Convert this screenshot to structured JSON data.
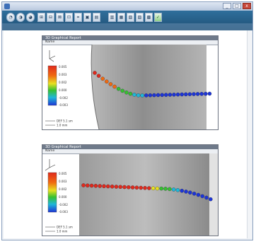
{
  "window": {
    "title": "",
    "controls": [
      "_",
      "□",
      "x"
    ]
  },
  "toolbar": {
    "buttons": [
      "◔",
      "◑",
      "◕",
      "⊞",
      "⊟",
      "⊠",
      "⊡",
      "⌗",
      "▣",
      "▤",
      "▥",
      "▦",
      "▧",
      "▨",
      "▩",
      "✓"
    ]
  },
  "reports": [
    {
      "header": "3D Graphical Report",
      "name_label": "Name",
      "name_value": "",
      "legend_labels": [
        "0.005",
        "0.003",
        "0.002",
        "0.000",
        "-0.002",
        "-0.003"
      ],
      "footer_lines": [
        "DEF 5.1 sm",
        "1.0 mm"
      ]
    },
    {
      "header": "3D Graphical Report",
      "name_label": "Name",
      "name_value": "",
      "legend_labels": [
        "0.005",
        "0.003",
        "0.002",
        "0.000",
        "-0.002",
        "-0.003"
      ],
      "footer_lines": [
        "DEF 5.1 sm",
        "1.0 mm"
      ]
    }
  ],
  "colors": {
    "red": "#e02a1c",
    "orange": "#f06a10",
    "yellow": "#e8e020",
    "green": "#36c030",
    "cyan": "#1fb7d8",
    "blue": "#1d35d6"
  }
}
